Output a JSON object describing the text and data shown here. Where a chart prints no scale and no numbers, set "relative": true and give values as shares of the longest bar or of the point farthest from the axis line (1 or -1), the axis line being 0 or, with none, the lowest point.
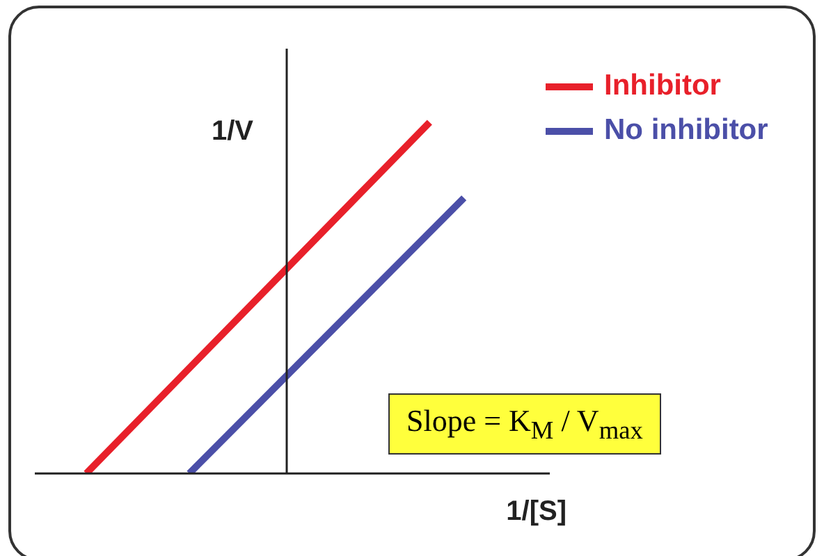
{
  "chart_data": {
    "type": "line",
    "relative": true,
    "xlabel": "1/[S]",
    "ylabel": "1/V",
    "legend": "top right",
    "marker": "none",
    "line_style": "solid",
    "categories": [
      null,
      null,
      null,
      null,
      null,
      null,
      null,
      null,
      null,
      null,
      null,
      null,
      null,
      null,
      null
    ],
    "series": [
      {
        "name": "Inhibitor",
        "color": "#e8202a",
        "values": [
          null,
          0,
          null,
          null,
          null,
          null,
          null,
          null,
          null,
          null,
          null,
          1,
          null,
          null,
          null
        ]
      },
      {
        "name": "No inhibitor",
        "color": "#4b4fa8",
        "values": [
          null,
          null,
          null,
          null,
          0,
          null,
          null,
          null,
          null,
          null,
          null,
          null,
          0.785,
          null,
          null
        ]
      }
    ],
    "annotations": [
      "Slope = K$_{M}$ / V$_{max}$"
    ]
  }
}
